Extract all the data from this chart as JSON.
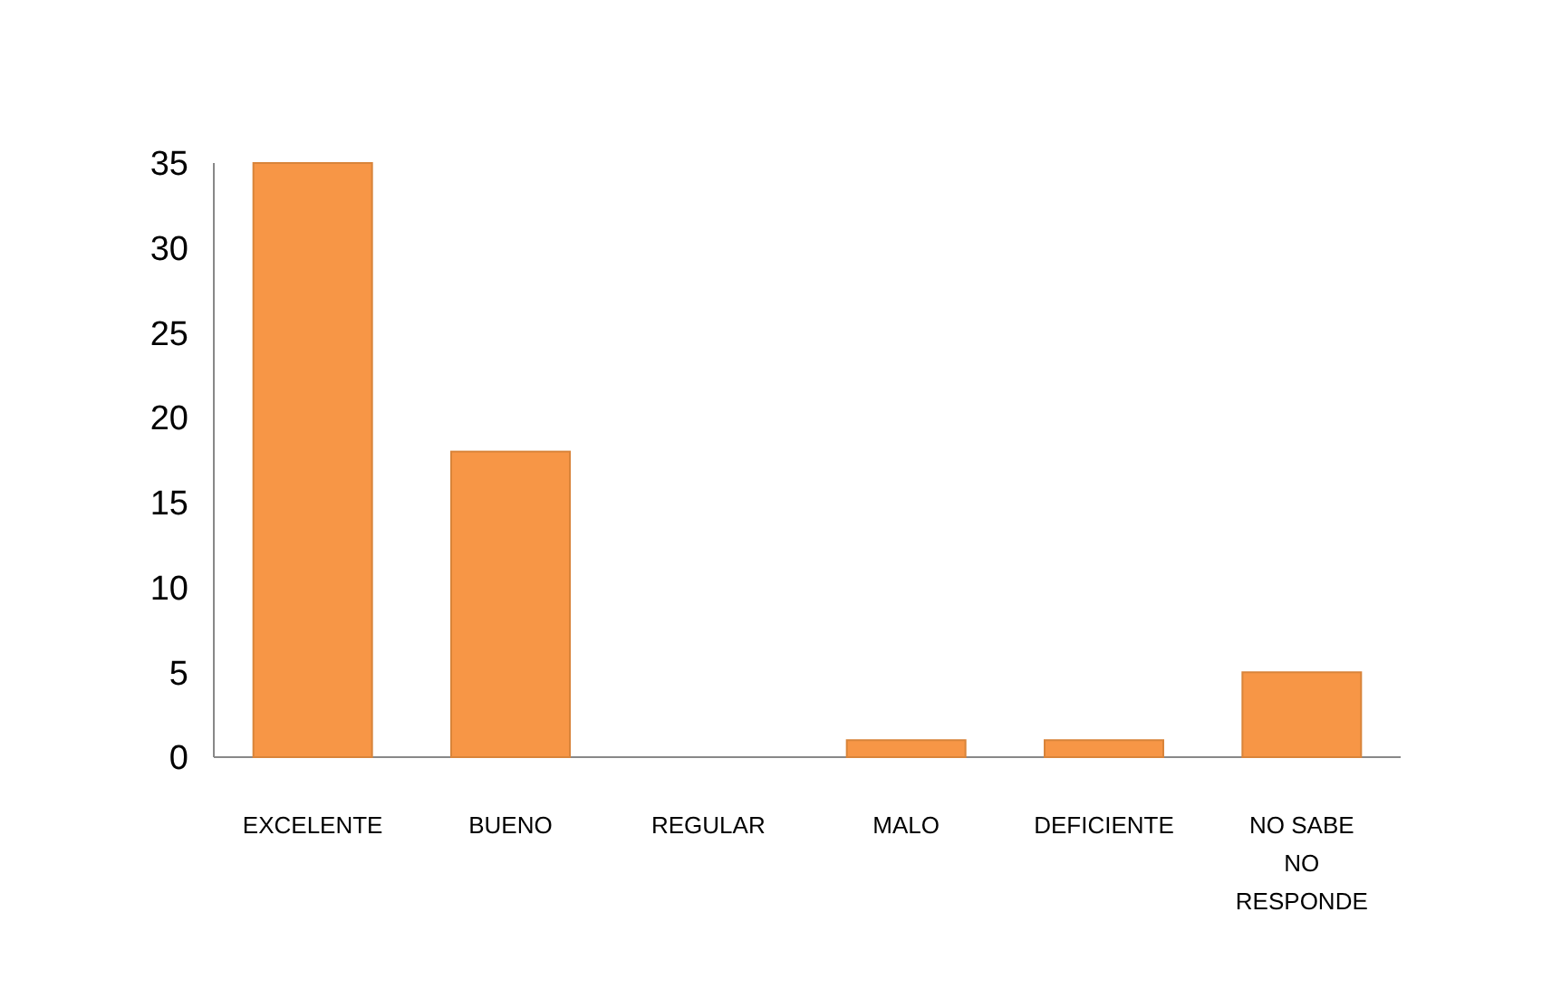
{
  "chart_data": {
    "type": "bar",
    "categories": [
      "EXCELENTE",
      "BUENO",
      "REGULAR",
      "MALO",
      "DEFICIENTE",
      "NO SABE NO RESPONDE"
    ],
    "values": [
      35,
      18,
      0,
      1,
      1,
      5
    ],
    "color": "#f79646",
    "ylim": [
      0,
      35
    ],
    "yticks": [
      0,
      5,
      10,
      15,
      20,
      25,
      30,
      35
    ],
    "grid": false
  }
}
